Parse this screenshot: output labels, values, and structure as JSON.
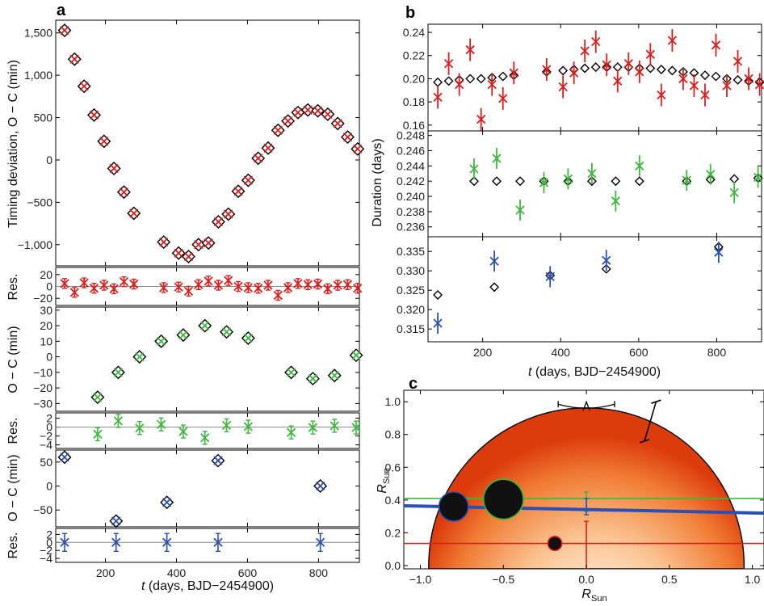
{
  "figure": {
    "panel_a_label": "a",
    "panel_b_label": "b",
    "panel_c_label": "c",
    "xlabel_ab": "t (days, BJD−2454900)",
    "x_italic": "t",
    "x_rest": " (days, BJD−2454900)",
    "res_label": "Res.",
    "oc_label": "O − C (min)",
    "timing_label": "Timing deviation, O − C (min)",
    "duration_label": "Duration (days)",
    "r_sun_main": "R",
    "r_sun_sub": "Sun"
  },
  "colors": {
    "red": "#dd1c1c",
    "green": "#3cb83c",
    "blue": "#2a4fb5",
    "black": "#000000"
  },
  "chart_data": [
    {
      "id": "a1",
      "type": "scatter",
      "panel": "a",
      "ylabel": "Timing deviation, O − C (min)",
      "xlim": [
        60,
        915
      ],
      "ylim": [
        -1250,
        1650
      ],
      "xticks": [
        200,
        400,
        600,
        800
      ],
      "yticks": [
        1500,
        1000,
        500,
        0,
        -500,
        -1000
      ],
      "ytick_labels": [
        "1,500",
        "1,000",
        "500",
        "0",
        "−500",
        "−1,000"
      ],
      "series": [
        {
          "name": "planet b",
          "color": "red",
          "x": [
            85,
            113,
            140,
            168,
            196,
            224,
            252,
            280,
            364,
            406,
            434,
            462,
            490,
            518,
            546,
            574,
            602,
            630,
            658,
            686,
            714,
            742,
            770,
            798,
            826,
            854,
            882,
            910
          ],
          "y": [
            1530,
            1190,
            870,
            530,
            220,
            -100,
            -380,
            -630,
            -970,
            -1100,
            -1140,
            -1000,
            -980,
            -730,
            -640,
            -370,
            -240,
            20,
            140,
            350,
            460,
            560,
            590,
            580,
            540,
            430,
            270,
            130
          ]
        }
      ]
    },
    {
      "id": "a1res",
      "type": "scatter",
      "panel": "a",
      "ylabel": "Res.",
      "xlim": [
        60,
        915
      ],
      "ylim": [
        -32,
        32
      ],
      "yticks": [
        20,
        0,
        -20
      ],
      "ytick_labels": [
        "20",
        "0",
        "−20"
      ],
      "series": [
        {
          "name": "planet b residuals",
          "color": "red",
          "x": [
            85,
            113,
            140,
            168,
            196,
            224,
            252,
            280,
            364,
            406,
            434,
            462,
            490,
            518,
            546,
            574,
            602,
            630,
            658,
            686,
            714,
            742,
            770,
            798,
            826,
            854,
            882,
            910
          ],
          "y": [
            5,
            -10,
            6,
            -3,
            2,
            -4,
            8,
            4,
            -2,
            -1,
            -8,
            3,
            9,
            2,
            10,
            0,
            -2,
            -3,
            2,
            -15,
            -2,
            5,
            3,
            4,
            -4,
            2,
            3,
            -3
          ]
        }
      ]
    },
    {
      "id": "a2",
      "type": "scatter",
      "panel": "a",
      "ylabel": "O − C (min)",
      "xlim": [
        60,
        915
      ],
      "ylim": [
        -35,
        32
      ],
      "yticks": [
        30,
        20,
        10,
        0,
        -10,
        -20,
        -30
      ],
      "ytick_labels": [
        "30",
        "20",
        "10",
        "0",
        "−10",
        "−20",
        "−30"
      ],
      "series": [
        {
          "name": "planet c",
          "color": "green",
          "x": [
            178,
            236,
            296,
            357,
            419,
            480,
            541,
            602,
            723,
            784,
            845,
            906
          ],
          "y": [
            -26,
            -10,
            0,
            10,
            14,
            20,
            16,
            12,
            -10,
            -14,
            -12,
            1
          ]
        }
      ]
    },
    {
      "id": "a2res",
      "type": "scatter",
      "panel": "a",
      "ylabel": "Res.",
      "xlim": [
        60,
        915
      ],
      "ylim": [
        -4.8,
        3.2
      ],
      "yticks": [
        2,
        0,
        -2,
        -4
      ],
      "ytick_labels": [
        "2",
        "0",
        "−2",
        "−4"
      ],
      "series": [
        {
          "name": "planet c residuals",
          "color": "green",
          "x": [
            178,
            236,
            296,
            357,
            419,
            480,
            541,
            602,
            723,
            784,
            845,
            906
          ],
          "y": [
            -1.6,
            1.4,
            -0.2,
            0.6,
            -1.0,
            -2.4,
            0.4,
            0.1,
            -1.2,
            -0.1,
            0.3,
            -0.1
          ]
        }
      ]
    },
    {
      "id": "a3",
      "type": "scatter",
      "panel": "a",
      "ylabel": "O − C (min)",
      "xlim": [
        60,
        915
      ],
      "ylim": [
        -85,
        75
      ],
      "yticks": [
        50,
        0,
        -50
      ],
      "ytick_labels": [
        "50",
        "0",
        "−50"
      ],
      "series": [
        {
          "name": "planet d",
          "color": "blue",
          "x": [
            85,
            230,
            373,
            517,
            805
          ],
          "y": [
            60,
            -73,
            -34,
            53,
            0
          ]
        }
      ]
    },
    {
      "id": "a3res",
      "type": "scatter",
      "panel": "a",
      "ylabel": "Res.",
      "xlim": [
        60,
        915
      ],
      "ylim": [
        -5,
        3.5
      ],
      "yticks": [
        2,
        0,
        -2,
        -4
      ],
      "ytick_labels": [
        "2",
        "0",
        "−2",
        "−4"
      ],
      "series": [
        {
          "name": "planet d residuals",
          "color": "blue",
          "x": [
            85,
            230,
            373,
            517,
            805
          ],
          "y": [
            0,
            0,
            0,
            0,
            0
          ]
        }
      ]
    },
    {
      "id": "b1",
      "type": "scatter",
      "panel": "b",
      "ylabel": "Duration (days)",
      "xlim": [
        60,
        915
      ],
      "ylim": [
        0.155,
        0.247
      ],
      "yticks": [
        0.24,
        0.22,
        0.2,
        0.18,
        0.16
      ],
      "ytick_labels": [
        "0.24",
        "0.22",
        "0.20",
        "0.18",
        "0.16"
      ],
      "series": [
        {
          "name": "planet b durations",
          "color": "red",
          "x": [
            85,
            113,
            140,
            168,
            196,
            224,
            252,
            280,
            364,
            406,
            434,
            462,
            490,
            518,
            546,
            574,
            602,
            630,
            658,
            686,
            714,
            742,
            770,
            798,
            826,
            854,
            882,
            910
          ],
          "y": [
            0.184,
            0.213,
            0.195,
            0.225,
            0.165,
            0.195,
            0.183,
            0.205,
            0.208,
            0.193,
            0.205,
            0.224,
            0.232,
            0.212,
            0.198,
            0.213,
            0.206,
            0.221,
            0.186,
            0.233,
            0.2,
            0.194,
            0.186,
            0.229,
            0.194,
            0.215,
            0.2,
            0.195
          ]
        },
        {
          "name": "model b",
          "color": "black",
          "marker": "diamond",
          "x": [
            85,
            113,
            140,
            168,
            196,
            224,
            252,
            280,
            364,
            406,
            434,
            462,
            490,
            518,
            546,
            574,
            602,
            630,
            658,
            686,
            714,
            742,
            770,
            798,
            826,
            854,
            882,
            910
          ],
          "y": [
            0.197,
            0.198,
            0.199,
            0.2,
            0.2,
            0.201,
            0.202,
            0.203,
            0.206,
            0.207,
            0.208,
            0.209,
            0.21,
            0.21,
            0.21,
            0.21,
            0.209,
            0.209,
            0.208,
            0.207,
            0.206,
            0.205,
            0.203,
            0.202,
            0.2,
            0.199,
            0.198,
            0.197
          ]
        }
      ]
    },
    {
      "id": "b2",
      "type": "scatter",
      "panel": "b",
      "ylabel": "Duration (days)",
      "xlim": [
        60,
        915
      ],
      "ylim": [
        0.2347,
        0.2486
      ],
      "yticks": [
        0.248,
        0.246,
        0.244,
        0.242,
        0.24,
        0.238,
        0.236
      ],
      "ytick_labels": [
        "0.248",
        "0.246",
        "0.244",
        "0.242",
        "0.240",
        "0.238",
        "0.236"
      ],
      "series": [
        {
          "name": "planet c durations",
          "color": "green",
          "x": [
            178,
            236,
            296,
            357,
            419,
            480,
            541,
            602,
            723,
            784,
            845,
            906
          ],
          "y": [
            0.2436,
            0.245,
            0.2382,
            0.2418,
            0.2423,
            0.243,
            0.2394,
            0.244,
            0.2421,
            0.2429,
            0.2405,
            0.2425
          ]
        },
        {
          "name": "model c",
          "color": "black",
          "marker": "diamond",
          "x": [
            178,
            236,
            296,
            357,
            419,
            480,
            541,
            602,
            723,
            784,
            845,
            906
          ],
          "y": [
            0.242,
            0.242,
            0.242,
            0.242,
            0.242,
            0.242,
            0.242,
            0.242,
            0.242,
            0.2422,
            0.2423,
            0.2424
          ]
        }
      ]
    },
    {
      "id": "b3",
      "type": "scatter",
      "panel": "b",
      "ylabel": "Duration (days)",
      "xlim": [
        60,
        915
      ],
      "ylim": [
        0.3117,
        0.3388
      ],
      "yticks": [
        0.335,
        0.33,
        0.325,
        0.32,
        0.315
      ],
      "ytick_labels": [
        "0.335",
        "0.330",
        "0.325",
        "0.320",
        "0.315"
      ],
      "xticks": [
        200,
        400,
        600,
        800
      ],
      "xlabel": "t (days, BJD−2454900)",
      "series": [
        {
          "name": "planet d durations",
          "color": "blue",
          "x": [
            85,
            230,
            373,
            517,
            805
          ],
          "y": [
            0.3165,
            0.3325,
            0.3285,
            0.3327,
            0.3348
          ]
        },
        {
          "name": "model d",
          "color": "black",
          "marker": "diamond",
          "x": [
            85,
            230,
            373,
            517,
            805
          ],
          "y": [
            0.3238,
            0.3258,
            0.3288,
            0.3305,
            0.3362
          ]
        }
      ]
    },
    {
      "id": "c",
      "type": "diagram",
      "panel": "c",
      "xlabel": "R Sun",
      "ylabel": "R Sun",
      "xlim": [
        -1.1,
        1.07
      ],
      "ylim": [
        -0.02,
        1.07
      ],
      "xticks": [
        -1.0,
        -0.5,
        0.0,
        0.5,
        1.0
      ],
      "xtick_labels": [
        "−1.0",
        "−0.5",
        "0.0",
        "0.5",
        "1.0"
      ],
      "yticks": [
        0.0,
        0.2,
        0.4,
        0.6,
        0.8,
        1.0
      ],
      "ytick_labels": [
        "0.0",
        "0.2",
        "0.4",
        "0.6",
        "0.8",
        "1.0"
      ],
      "star_radius": 0.95,
      "planets": [
        {
          "name": "planet d",
          "color": "blue",
          "x": -0.8,
          "y": 0.36,
          "r": 0.088
        },
        {
          "name": "planet c",
          "color": "green",
          "x": -0.5,
          "y": 0.405,
          "r": 0.12
        },
        {
          "name": "planet b",
          "color": "red",
          "x": -0.19,
          "y": 0.135,
          "r": 0.042
        }
      ],
      "chords": [
        {
          "name": "chord c",
          "color": "green",
          "y1": 0.41,
          "y2": 0.41
        },
        {
          "name": "chord d",
          "color": "blue",
          "y1": 0.365,
          "y2": 0.32
        },
        {
          "name": "chord b",
          "color": "red",
          "y1": 0.135,
          "y2": 0.135
        }
      ],
      "error_bars": [
        {
          "name": "impact c error",
          "color": "green",
          "x": 0.0,
          "lo": 0.33,
          "hi": 0.45
        },
        {
          "name": "impact d error",
          "color": "blue",
          "x": 0.0,
          "lo": 0.31,
          "hi": 0.41
        },
        {
          "name": "impact b error",
          "color": "red",
          "x": 0.0,
          "lo": -0.02,
          "hi": 0.27
        },
        {
          "name": "stellar radius error",
          "color": "black",
          "x1": 0.35,
          "y1": 0.76,
          "x2": 0.42,
          "y2": 1.0
        }
      ],
      "rotation_arrow": {
        "x_from": -0.17,
        "x_to": 0.17,
        "y": 0.985
      }
    }
  ]
}
